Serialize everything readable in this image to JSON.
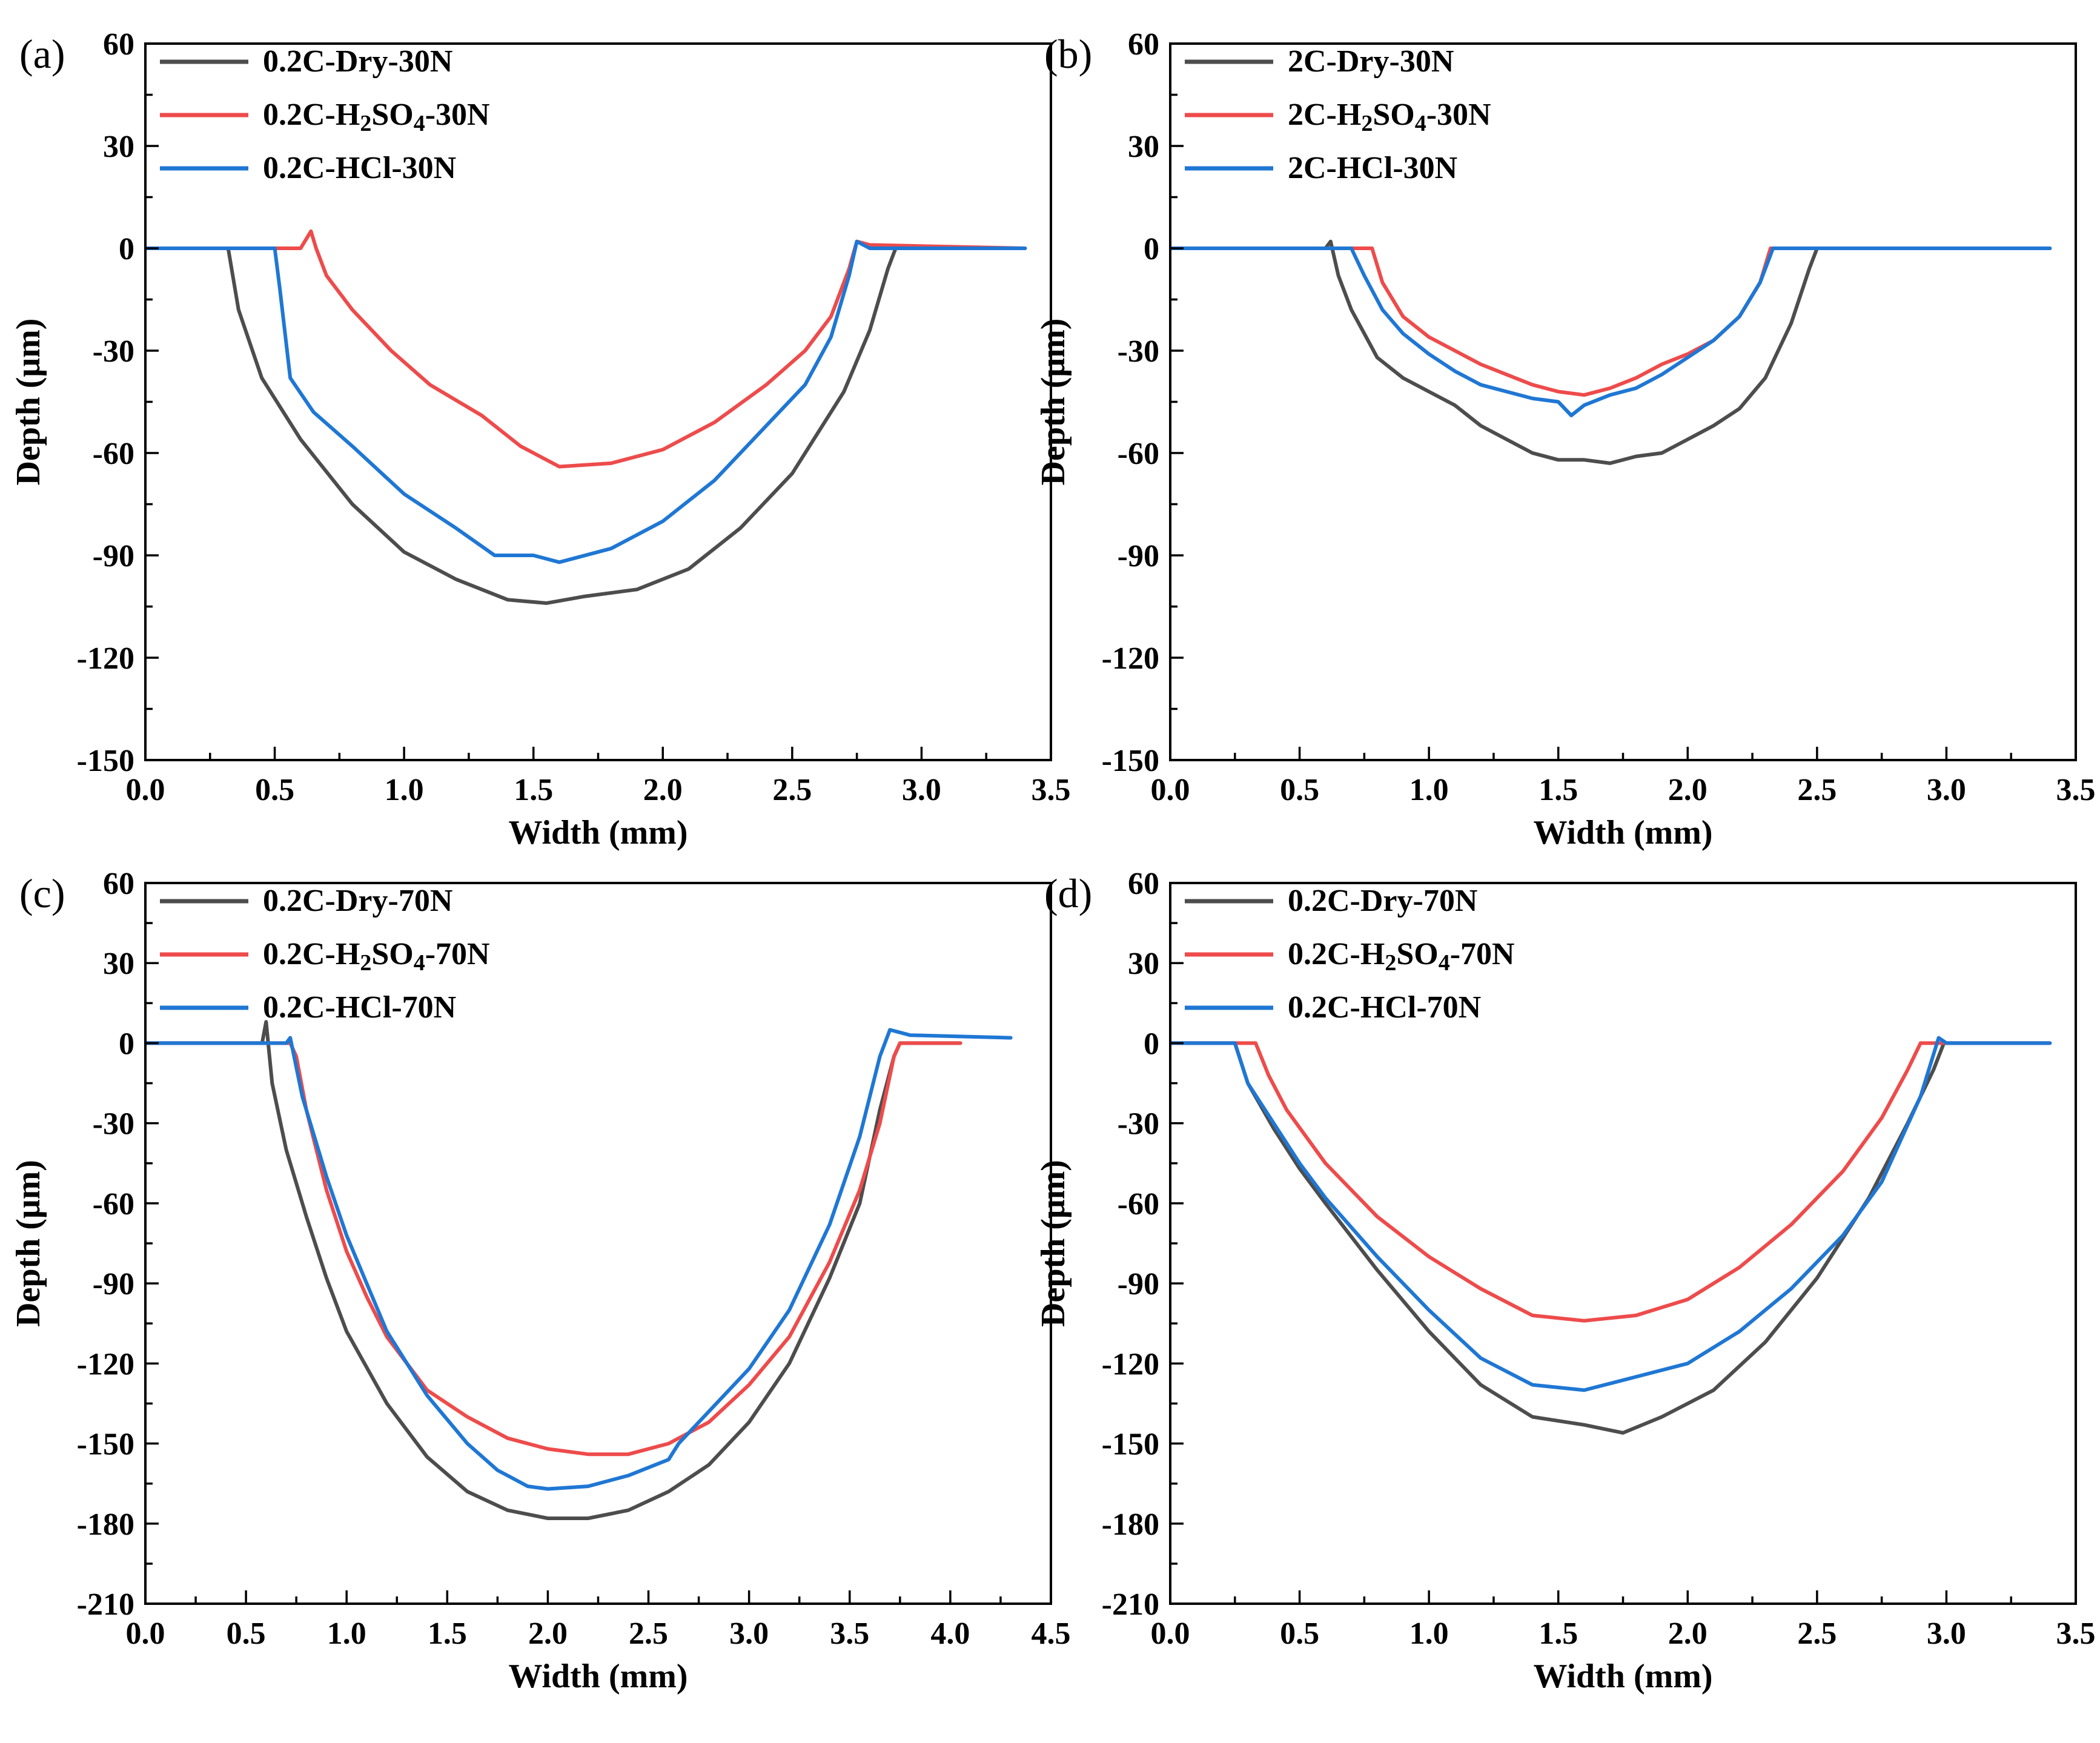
{
  "chart_data": [
    {
      "id": "a",
      "type": "line",
      "panel_label": "(a)",
      "xlabel": "Width (mm)",
      "ylabel": "Depth (μm)",
      "xlim": [
        0,
        3.5
      ],
      "ylim": [
        -150,
        60
      ],
      "xticks": [
        0,
        0.5,
        1.0,
        1.5,
        2.0,
        2.5,
        3.0,
        3.5
      ],
      "xtick_labels": [
        "0.0",
        "0.5",
        "1.0",
        "1.5",
        "2.0",
        "2.5",
        "3.0",
        "3.5"
      ],
      "yticks": [
        60,
        30,
        0,
        -30,
        -60,
        -90,
        -120,
        -150
      ],
      "ytick_labels": [
        "60",
        "30",
        "0",
        "-30",
        "-60",
        "-90",
        "-120",
        "-150"
      ],
      "legend_position": "top-left",
      "series": [
        {
          "name": "0.2C-Dry-30N",
          "name_parts": [
            {
              "t": "0.2C-Dry-30N"
            }
          ],
          "color": "#4d4d4d",
          "x": [
            0,
            0.32,
            0.36,
            0.45,
            0.6,
            0.8,
            1.0,
            1.2,
            1.4,
            1.55,
            1.7,
            1.9,
            2.1,
            2.3,
            2.5,
            2.7,
            2.8,
            2.87,
            2.9,
            3.4
          ],
          "y": [
            0,
            0,
            -18,
            -38,
            -56,
            -75,
            -89,
            -97,
            -103,
            -104,
            -102,
            -100,
            -94,
            -82,
            -66,
            -42,
            -24,
            -6,
            0,
            0
          ]
        },
        {
          "name": "0.2C-H2SO4-30N",
          "name_parts": [
            {
              "t": "0.2C-H"
            },
            {
              "t": "2",
              "sub": true
            },
            {
              "t": "SO"
            },
            {
              "t": "4",
              "sub": true
            },
            {
              "t": "-30N"
            }
          ],
          "color": "#ee4b4b",
          "x": [
            0,
            0.6,
            0.64,
            0.66,
            0.7,
            0.8,
            0.95,
            1.1,
            1.3,
            1.45,
            1.6,
            1.8,
            2.0,
            2.2,
            2.4,
            2.55,
            2.65,
            2.72,
            2.75,
            2.8,
            3.4
          ],
          "y": [
            0,
            0,
            5,
            0,
            -8,
            -18,
            -30,
            -40,
            -49,
            -58,
            -64,
            -63,
            -59,
            -51,
            -40,
            -30,
            -20,
            -6,
            2,
            1,
            0
          ]
        },
        {
          "name": "0.2C-HCl-30N",
          "name_parts": [
            {
              "t": "0.2C-HCl-30N"
            }
          ],
          "color": "#1f77d4",
          "x": [
            0,
            0.5,
            0.52,
            0.56,
            0.65,
            0.8,
            1.0,
            1.2,
            1.35,
            1.5,
            1.6,
            1.8,
            2.0,
            2.2,
            2.4,
            2.55,
            2.65,
            2.72,
            2.75,
            2.8,
            3.4
          ],
          "y": [
            0,
            0,
            -12,
            -38,
            -48,
            -58,
            -72,
            -82,
            -90,
            -90,
            -92,
            -88,
            -80,
            -68,
            -52,
            -40,
            -26,
            -8,
            2,
            0,
            0
          ]
        }
      ]
    },
    {
      "id": "b",
      "type": "line",
      "panel_label": "(b)",
      "xlabel": "Width (mm)",
      "ylabel": "Depth (μm)",
      "xlim": [
        0,
        3.5
      ],
      "ylim": [
        -150,
        60
      ],
      "xticks": [
        0,
        0.5,
        1.0,
        1.5,
        2.0,
        2.5,
        3.0,
        3.5
      ],
      "xtick_labels": [
        "0.0",
        "0.5",
        "1.0",
        "1.5",
        "2.0",
        "2.5",
        "3.0",
        "3.5"
      ],
      "yticks": [
        60,
        30,
        0,
        -30,
        -60,
        -90,
        -120,
        -150
      ],
      "ytick_labels": [
        "60",
        "30",
        "0",
        "-30",
        "-60",
        "-90",
        "-120",
        "-150"
      ],
      "legend_position": "top-left",
      "series": [
        {
          "name": "2C-Dry-30N",
          "name_parts": [
            {
              "t": "2C-Dry-30N"
            }
          ],
          "color": "#4d4d4d",
          "x": [
            0,
            0.6,
            0.62,
            0.65,
            0.7,
            0.75,
            0.8,
            0.9,
            1.0,
            1.1,
            1.2,
            1.3,
            1.4,
            1.5,
            1.6,
            1.7,
            1.8,
            1.9,
            2.0,
            2.1,
            2.2,
            2.3,
            2.4,
            2.47,
            2.5,
            3.4
          ],
          "y": [
            0,
            0,
            2,
            -8,
            -18,
            -25,
            -32,
            -38,
            -42,
            -46,
            -52,
            -56,
            -60,
            -62,
            -62,
            -63,
            -61,
            -60,
            -56,
            -52,
            -47,
            -38,
            -22,
            -6,
            0,
            0
          ]
        },
        {
          "name": "2C-H2SO4-30N",
          "name_parts": [
            {
              "t": "2C-H"
            },
            {
              "t": "2",
              "sub": true
            },
            {
              "t": "SO"
            },
            {
              "t": "4",
              "sub": true
            },
            {
              "t": "-30N"
            }
          ],
          "color": "#ee4b4b",
          "x": [
            0,
            0.78,
            0.82,
            0.9,
            1.0,
            1.1,
            1.2,
            1.3,
            1.4,
            1.5,
            1.6,
            1.7,
            1.8,
            1.9,
            2.0,
            2.1,
            2.2,
            2.28,
            2.32,
            3.4
          ],
          "y": [
            0,
            0,
            -10,
            -20,
            -26,
            -30,
            -34,
            -37,
            -40,
            -42,
            -43,
            -41,
            -38,
            -34,
            -31,
            -27,
            -20,
            -10,
            0,
            0
          ]
        },
        {
          "name": "2C-HCl-30N",
          "name_parts": [
            {
              "t": "2C-HCl-30N"
            }
          ],
          "color": "#1f77d4",
          "x": [
            0,
            0.7,
            0.75,
            0.82,
            0.9,
            1.0,
            1.1,
            1.2,
            1.3,
            1.4,
            1.5,
            1.55,
            1.6,
            1.7,
            1.8,
            1.9,
            2.0,
            2.1,
            2.2,
            2.28,
            2.33,
            3.4
          ],
          "y": [
            0,
            0,
            -8,
            -18,
            -25,
            -31,
            -36,
            -40,
            -42,
            -44,
            -45,
            -49,
            -46,
            -43,
            -41,
            -37,
            -32,
            -27,
            -20,
            -10,
            0,
            0
          ]
        }
      ]
    },
    {
      "id": "c",
      "type": "line",
      "panel_label": "(c)",
      "xlabel": "Width (mm)",
      "ylabel": "Depth (μm)",
      "xlim": [
        0,
        4.5
      ],
      "ylim": [
        -210,
        60
      ],
      "xticks": [
        0,
        0.5,
        1.0,
        1.5,
        2.0,
        2.5,
        3.0,
        3.5,
        4.0,
        4.5
      ],
      "xtick_labels": [
        "0.0",
        "0.5",
        "1.0",
        "1.5",
        "2.0",
        "2.5",
        "3.0",
        "3.5",
        "4.0",
        "4.5"
      ],
      "yticks": [
        60,
        30,
        0,
        -30,
        -60,
        -90,
        -120,
        -150,
        -180,
        -210
      ],
      "ytick_labels": [
        "60",
        "30",
        "0",
        "-30",
        "-60",
        "-90",
        "-120",
        "-150",
        "-180",
        "-210"
      ],
      "legend_position": "top-left",
      "series": [
        {
          "name": "0.2C-Dry-70N",
          "name_parts": [
            {
              "t": "0.2C-Dry-70N"
            }
          ],
          "color": "#4d4d4d",
          "x": [
            0,
            0.58,
            0.6,
            0.63,
            0.7,
            0.8,
            0.9,
            1.0,
            1.2,
            1.4,
            1.6,
            1.8,
            2.0,
            2.2,
            2.4,
            2.6,
            2.8,
            3.0,
            3.2,
            3.4,
            3.55,
            3.65,
            3.72,
            3.75,
            4.05
          ],
          "y": [
            0,
            0,
            8,
            -15,
            -40,
            -65,
            -88,
            -108,
            -135,
            -155,
            -168,
            -175,
            -178,
            -178,
            -175,
            -168,
            -158,
            -142,
            -120,
            -88,
            -60,
            -25,
            -5,
            0,
            0
          ]
        },
        {
          "name": "0.2C-H2SO4-70N",
          "name_parts": [
            {
              "t": "0.2C-H"
            },
            {
              "t": "2",
              "sub": true
            },
            {
              "t": "SO"
            },
            {
              "t": "4",
              "sub": true
            },
            {
              "t": "-70N"
            }
          ],
          "color": "#ee4b4b",
          "x": [
            0,
            0.72,
            0.75,
            0.8,
            0.9,
            1.0,
            1.1,
            1.2,
            1.4,
            1.6,
            1.8,
            2.0,
            2.2,
            2.4,
            2.6,
            2.8,
            3.0,
            3.2,
            3.4,
            3.55,
            3.65,
            3.72,
            3.75,
            4.05
          ],
          "y": [
            0,
            0,
            -5,
            -25,
            -55,
            -78,
            -95,
            -110,
            -130,
            -140,
            -148,
            -152,
            -154,
            -154,
            -150,
            -142,
            -128,
            -110,
            -82,
            -55,
            -30,
            -5,
            0,
            0
          ]
        },
        {
          "name": "0.2C-HCl-70N",
          "name_parts": [
            {
              "t": "0.2C-HCl-70N"
            }
          ],
          "color": "#1f77d4",
          "x": [
            0,
            0.7,
            0.72,
            0.78,
            0.9,
            1.0,
            1.1,
            1.2,
            1.4,
            1.6,
            1.75,
            1.8,
            1.9,
            2.0,
            2.2,
            2.4,
            2.6,
            2.65,
            2.8,
            3.0,
            3.2,
            3.4,
            3.55,
            3.65,
            3.7,
            3.8,
            4.3
          ],
          "y": [
            0,
            0,
            2,
            -20,
            -50,
            -72,
            -90,
            -108,
            -132,
            -150,
            -160,
            -162,
            -166,
            -167,
            -166,
            -162,
            -156,
            -150,
            -138,
            -122,
            -100,
            -68,
            -35,
            -5,
            5,
            3,
            2
          ]
        }
      ]
    },
    {
      "id": "d",
      "type": "line",
      "panel_label": "(d)",
      "xlabel": "Width (mm)",
      "ylabel": "Depth (μm)",
      "xlim": [
        0,
        3.5
      ],
      "ylim": [
        -210,
        60
      ],
      "xticks": [
        0,
        0.5,
        1.0,
        1.5,
        2.0,
        2.5,
        3.0,
        3.5
      ],
      "xtick_labels": [
        "0.0",
        "0.5",
        "1.0",
        "1.5",
        "2.0",
        "2.5",
        "3.0",
        "3.5"
      ],
      "yticks": [
        60,
        30,
        0,
        -30,
        -60,
        -90,
        -120,
        -150,
        -180,
        -210
      ],
      "ytick_labels": [
        "60",
        "30",
        "0",
        "-30",
        "-60",
        "-90",
        "-120",
        "-150",
        "-180",
        "-210"
      ],
      "legend_position": "top-left",
      "series": [
        {
          "name": "0.2C-Dry-70N",
          "name_parts": [
            {
              "t": "0.2C-Dry-70N"
            }
          ],
          "color": "#4d4d4d",
          "x": [
            0,
            0.25,
            0.3,
            0.4,
            0.5,
            0.6,
            0.8,
            1.0,
            1.2,
            1.4,
            1.6,
            1.75,
            1.9,
            2.1,
            2.3,
            2.5,
            2.7,
            2.85,
            2.95,
            2.99,
            3.4
          ],
          "y": [
            0,
            0,
            -15,
            -32,
            -47,
            -60,
            -85,
            -108,
            -128,
            -140,
            -143,
            -146,
            -140,
            -130,
            -112,
            -88,
            -58,
            -30,
            -10,
            0,
            0
          ]
        },
        {
          "name": "0.2C-H2SO4-70N",
          "name_parts": [
            {
              "t": "0.2C-H"
            },
            {
              "t": "2",
              "sub": true
            },
            {
              "t": "SO"
            },
            {
              "t": "4",
              "sub": true
            },
            {
              "t": "-70N"
            }
          ],
          "color": "#ee4b4b",
          "x": [
            0,
            0.33,
            0.38,
            0.45,
            0.6,
            0.8,
            1.0,
            1.2,
            1.4,
            1.6,
            1.8,
            2.0,
            2.2,
            2.4,
            2.6,
            2.75,
            2.85,
            2.9,
            3.4
          ],
          "y": [
            0,
            0,
            -12,
            -25,
            -45,
            -65,
            -80,
            -92,
            -102,
            -104,
            -102,
            -96,
            -84,
            -68,
            -48,
            -28,
            -10,
            0,
            0
          ]
        },
        {
          "name": "0.2C-HCl-70N",
          "name_parts": [
            {
              "t": "0.2C-HCl-70N"
            }
          ],
          "color": "#1f77d4",
          "x": [
            0,
            0.25,
            0.3,
            0.4,
            0.5,
            0.6,
            0.8,
            1.0,
            1.2,
            1.4,
            1.6,
            1.8,
            2.0,
            2.2,
            2.4,
            2.6,
            2.75,
            2.9,
            2.97,
            3.0,
            3.4
          ],
          "y": [
            0,
            0,
            -15,
            -30,
            -45,
            -58,
            -80,
            -100,
            -118,
            -128,
            -130,
            -125,
            -120,
            -108,
            -92,
            -72,
            -52,
            -20,
            2,
            0,
            0
          ]
        }
      ]
    }
  ]
}
